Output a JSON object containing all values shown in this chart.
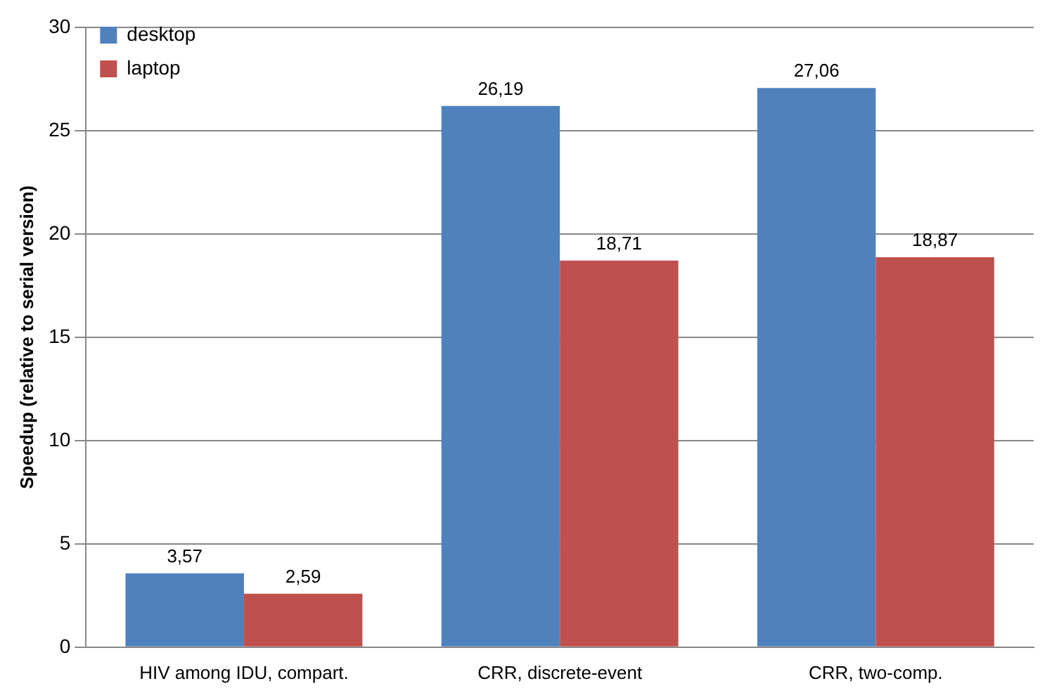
{
  "chart_data": {
    "type": "bar",
    "ylabel": "Speedup (relative to serial version)",
    "categories": [
      "HIV among IDU, compart.",
      "CRR, discrete-event",
      "CRR, two-comp."
    ],
    "series": [
      {
        "name": "desktop",
        "color": "#4f81bd",
        "values": [
          3.57,
          26.19,
          27.06
        ],
        "value_labels": [
          "3,57",
          "26,19",
          "27,06"
        ]
      },
      {
        "name": "laptop",
        "color": "#c0504d",
        "values": [
          2.59,
          18.71,
          18.87
        ],
        "value_labels": [
          "2,59",
          "18,71",
          "18,87"
        ]
      }
    ],
    "ylim": [
      0,
      30
    ],
    "yticks": [
      0,
      5,
      10,
      15,
      20,
      25,
      30
    ],
    "grid": "y",
    "legend": "top left"
  }
}
